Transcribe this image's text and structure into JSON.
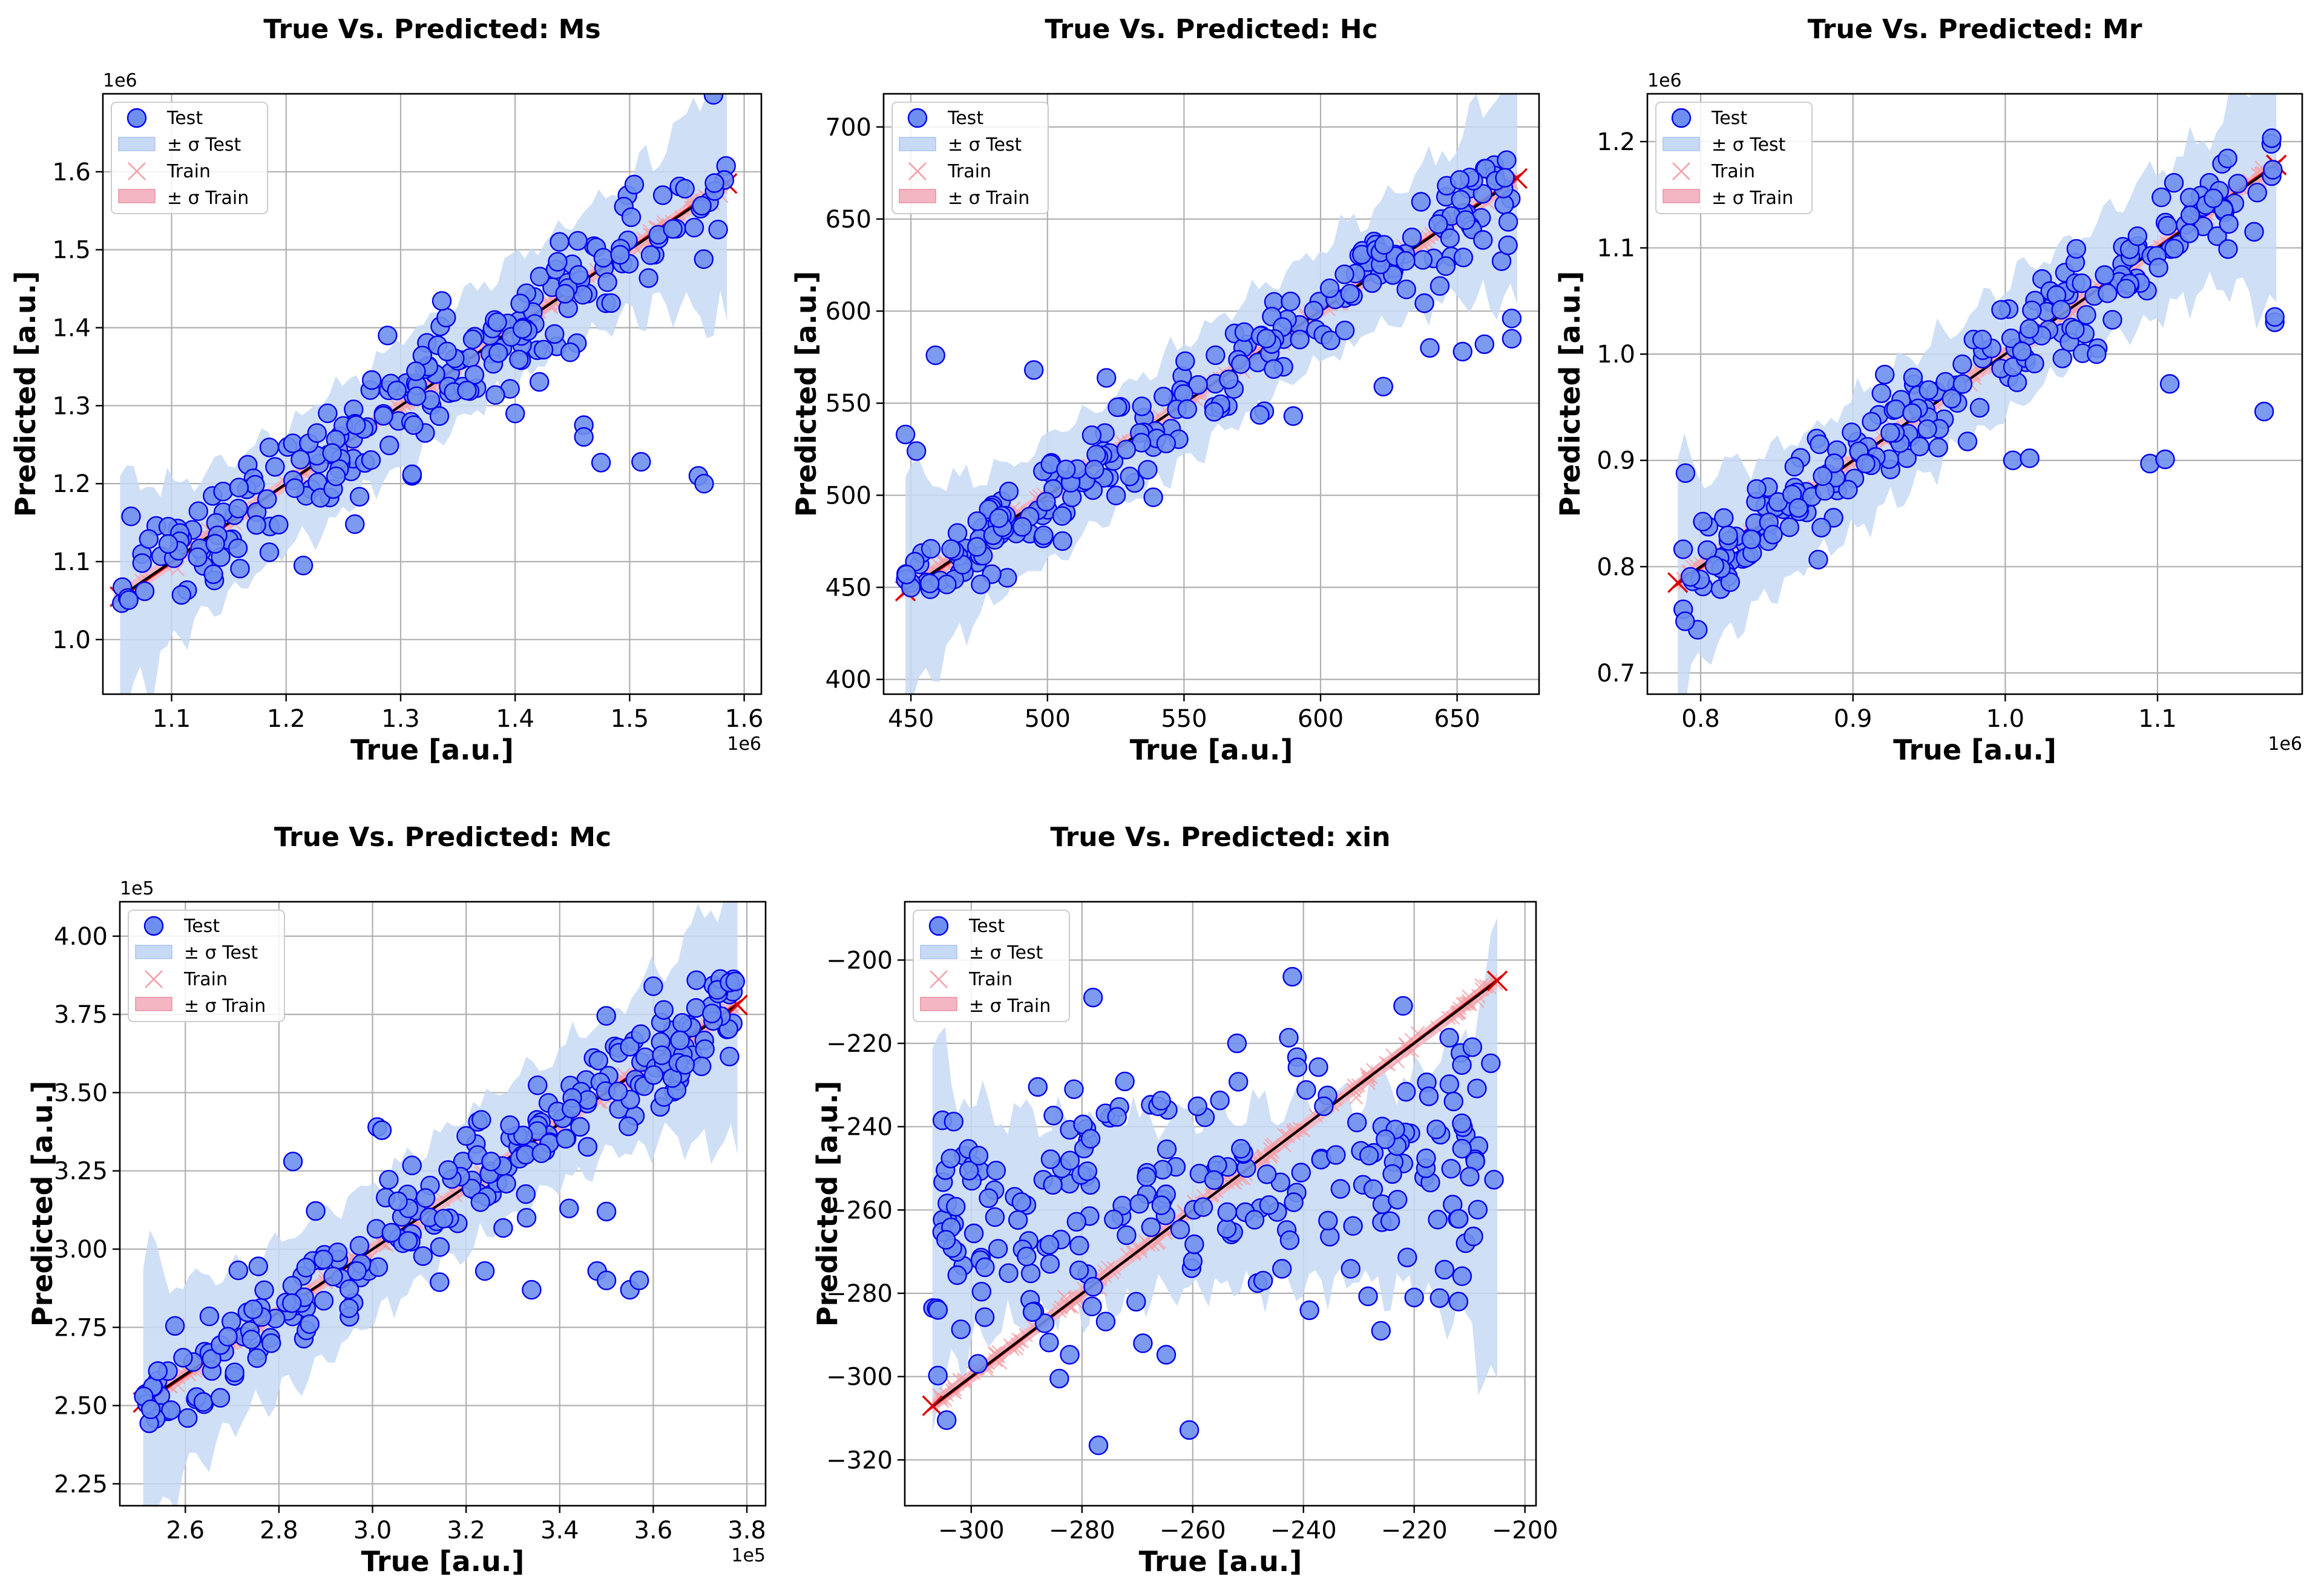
{
  "legend": {
    "test": "Test",
    "test_band": "± σ Test",
    "train": "Train",
    "train_band": "± σ Train"
  },
  "colors": {
    "test_fill": "#6f8ff0",
    "test_edge": "#0000ee",
    "test_band": "#c7d9f5",
    "train_marker": "#f4a0a6",
    "train_band": "#f4b6c2",
    "identity_line": "#000000",
    "fit_line": "#dd0000",
    "grid": "#b0b0b0"
  },
  "chart_data": [
    {
      "type": "scatter",
      "title": "True Vs. Predicted: Ms",
      "xlabel": "True [a.u.]",
      "ylabel": "Predicted [a.u.]",
      "xoffset": "1e6",
      "yoffset": "1e6",
      "xlim": [
        1.04,
        1.615
      ],
      "ylim": [
        0.93,
        1.7
      ],
      "xticks": [
        1.1,
        1.2,
        1.3,
        1.4,
        1.5,
        1.6
      ],
      "xtick_labels": [
        "1.1",
        "1.2",
        "1.3",
        "1.4",
        "1.5",
        "1.6"
      ],
      "yticks": [
        1.0,
        1.1,
        1.2,
        1.3,
        1.4,
        1.5,
        1.6
      ],
      "ytick_labels": [
        "1.0",
        "1.1",
        "1.2",
        "1.3",
        "1.4",
        "1.5",
        "1.6"
      ],
      "range": [
        1.055,
        1.585
      ],
      "sigma": 0.08,
      "n_points": 230,
      "outliers": [
        [
          1.215,
          1.095
        ],
        [
          1.26,
          1.148
        ],
        [
          1.31,
          1.21
        ],
        [
          1.31,
          1.212
        ],
        [
          1.4,
          1.29
        ],
        [
          1.46,
          1.275
        ],
        [
          1.46,
          1.26
        ],
        [
          1.475,
          1.227
        ],
        [
          1.51,
          1.228
        ],
        [
          1.56,
          1.21
        ],
        [
          1.565,
          1.2
        ]
      ],
      "seed": 11
    },
    {
      "type": "scatter",
      "title": "True Vs. Predicted: Hc",
      "xlabel": "True  [a.u.]",
      "ylabel": "Predicted  [a.u.]",
      "xoffset": "",
      "yoffset": "",
      "xlim": [
        440,
        680
      ],
      "ylim": [
        392,
        718
      ],
      "xticks": [
        450,
        500,
        550,
        600,
        650
      ],
      "xtick_labels": [
        "450",
        "500",
        "550",
        "600",
        "650"
      ],
      "yticks": [
        400,
        450,
        500,
        550,
        600,
        650,
        700
      ],
      "ytick_labels": [
        "400",
        "450",
        "500",
        "550",
        "600",
        "650",
        "700"
      ],
      "range": [
        448,
        672
      ],
      "sigma": 32,
      "n_points": 230,
      "outliers": [
        [
          459,
          576
        ],
        [
          448,
          533
        ],
        [
          452,
          524
        ],
        [
          495,
          568
        ],
        [
          590,
          543
        ],
        [
          623,
          559
        ],
        [
          660,
          582
        ],
        [
          670,
          585
        ],
        [
          670,
          596
        ],
        [
          652,
          578
        ],
        [
          640,
          580
        ]
      ],
      "seed": 23
    },
    {
      "type": "scatter",
      "title": "True Vs. Predicted: Mr",
      "xlabel": "True  [a.u.]",
      "ylabel": "Predicted  [a.u.]",
      "xoffset": "1e6",
      "yoffset": "1e6",
      "xlim": [
        0.765,
        1.195
      ],
      "ylim": [
        0.68,
        1.245
      ],
      "xticks": [
        0.8,
        0.9,
        1.0,
        1.1
      ],
      "xtick_labels": [
        "0.8",
        "0.9",
        "1.0",
        "1.1"
      ],
      "yticks": [
        0.7,
        0.8,
        0.9,
        1.0,
        1.1,
        1.2
      ],
      "ytick_labels": [
        "0.7",
        "0.8",
        "0.9",
        "1.0",
        "1.1",
        "1.2"
      ],
      "range": [
        0.785,
        1.178
      ],
      "sigma": 0.06,
      "n_points": 230,
      "outliers": [
        [
          0.79,
          0.888
        ],
        [
          1.005,
          0.9
        ],
        [
          1.016,
          0.902
        ],
        [
          1.095,
          0.897
        ],
        [
          1.105,
          0.901
        ],
        [
          1.108,
          0.972
        ],
        [
          1.17,
          0.946
        ],
        [
          1.177,
          1.03
        ],
        [
          1.177,
          1.035
        ],
        [
          1.06,
          1.0
        ]
      ],
      "seed": 37
    },
    {
      "type": "scatter",
      "title": "True Vs. Predicted: Mc",
      "xlabel": "True  [a.u.]",
      "ylabel": "Predicted  [a.u.]",
      "xoffset": "1e5",
      "yoffset": "1e5",
      "xlim": [
        2.46,
        3.84
      ],
      "ylim": [
        2.18,
        4.11
      ],
      "xticks": [
        2.6,
        2.8,
        3.0,
        3.2,
        3.4,
        3.6,
        3.8
      ],
      "xtick_labels": [
        "2.6",
        "2.8",
        "3.0",
        "3.2",
        "3.4",
        "3.6",
        "3.8"
      ],
      "yticks": [
        2.25,
        2.5,
        2.75,
        3.0,
        3.25,
        3.5,
        3.75,
        4.0
      ],
      "ytick_labels": [
        "2.25",
        "2.50",
        "2.75",
        "3.00",
        "3.25",
        "3.50",
        "3.75",
        "4.00"
      ],
      "range": [
        2.51,
        3.78
      ],
      "sigma": 0.22,
      "n_points": 250,
      "outliers": [
        [
          2.83,
          3.28
        ],
        [
          3.01,
          3.39
        ],
        [
          3.02,
          3.38
        ],
        [
          3.34,
          2.87
        ],
        [
          3.48,
          2.93
        ],
        [
          3.5,
          2.9
        ],
        [
          3.55,
          2.87
        ],
        [
          3.57,
          2.9
        ],
        [
          3.6,
          3.84
        ],
        [
          3.42,
          3.13
        ],
        [
          3.5,
          3.12
        ],
        [
          3.24,
          2.93
        ]
      ],
      "seed": 51
    },
    {
      "type": "scatter",
      "title": "True Vs. Predicted: xin",
      "xlabel": "True  [a.u.]",
      "ylabel": "Predicted  [a.u.]",
      "xoffset": "",
      "yoffset": "",
      "xlim": [
        -312,
        -198
      ],
      "ylim": [
        -331,
        -186
      ],
      "xticks": [
        -300,
        -280,
        -260,
        -240,
        -220,
        -200
      ],
      "xtick_labels": [
        "−300",
        "−280",
        "−260",
        "−240",
        "−220",
        "−200"
      ],
      "yticks": [
        -320,
        -300,
        -280,
        -260,
        -240,
        -220,
        -200
      ],
      "ytick_labels": [
        "−320",
        "−300",
        "−280",
        "−260",
        "−240",
        "−220",
        "−200"
      ],
      "range": [
        -307,
        -205
      ],
      "sigma": 22,
      "n_points": 230,
      "flat_mean": -258,
      "flat_spread": 16,
      "outliers": [
        [
          -278,
          -209
        ],
        [
          -242,
          -204
        ],
        [
          -306,
          -284
        ],
        [
          -269,
          -292
        ],
        [
          -226,
          -289
        ],
        [
          -220,
          -281
        ],
        [
          -212,
          -282
        ],
        [
          -222,
          -211
        ],
        [
          -252,
          -220
        ]
      ],
      "seed": 67
    }
  ]
}
